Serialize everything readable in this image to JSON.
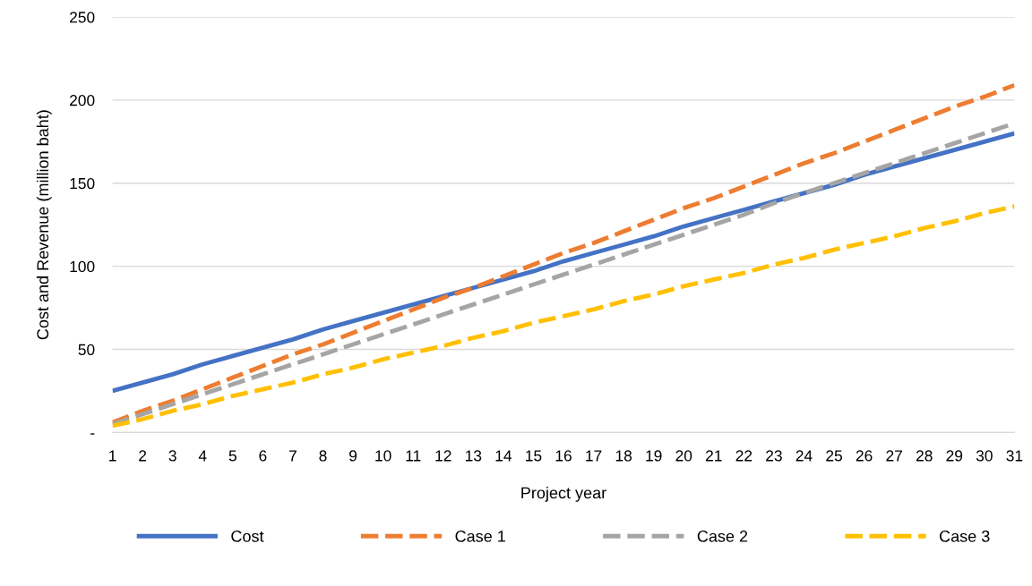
{
  "chart_data": {
    "type": "line",
    "xlabel": "Project year",
    "ylabel": "Cost and Revenue (million baht)",
    "categories": [
      "1",
      "2",
      "3",
      "4",
      "5",
      "6",
      "7",
      "8",
      "9",
      "10",
      "11",
      "12",
      "13",
      "14",
      "15",
      "16",
      "17",
      "18",
      "19",
      "20",
      "21",
      "22",
      "23",
      "24",
      "25",
      "26",
      "27",
      "28",
      "29",
      "30",
      "31"
    ],
    "series": [
      {
        "name": "Cost",
        "color": "#4472c4",
        "line_style": "solid",
        "values": [
          25,
          30,
          35,
          41,
          46,
          51,
          56,
          62,
          67,
          72,
          77,
          82,
          87,
          92,
          97,
          103,
          108,
          113,
          118,
          124,
          129,
          134,
          139,
          144,
          149,
          155,
          160,
          165,
          170,
          175,
          180
        ]
      },
      {
        "name": "Case 1",
        "color": "#ed7d31",
        "line_style": "dashed",
        "values": [
          6,
          13,
          19,
          26,
          33,
          40,
          47,
          53,
          60,
          67,
          74,
          81,
          87,
          94,
          101,
          108,
          114,
          121,
          128,
          135,
          141,
          148,
          155,
          162,
          168,
          175,
          182,
          189,
          196,
          202,
          209
        ]
      },
      {
        "name": "Case 2",
        "color": "#a5a5a5",
        "line_style": "dashed",
        "values": [
          5,
          11,
          17,
          23,
          29,
          35,
          41,
          47,
          53,
          59,
          65,
          71,
          77,
          83,
          89,
          95,
          101,
          107,
          113,
          119,
          125,
          131,
          138,
          144,
          150,
          156,
          162,
          168,
          174,
          180,
          186
        ]
      },
      {
        "name": "Case 3",
        "color": "#ffc000",
        "line_style": "dashed",
        "values": [
          4,
          8,
          13,
          17,
          22,
          26,
          30,
          35,
          39,
          44,
          48,
          52,
          57,
          61,
          66,
          70,
          74,
          79,
          83,
          88,
          92,
          96,
          101,
          105,
          110,
          114,
          118,
          123,
          127,
          132,
          136
        ]
      }
    ],
    "ylim": [
      0,
      250
    ],
    "yticks": [
      {
        "value": 0,
        "label": "-"
      },
      50,
      100,
      150,
      200,
      250
    ],
    "grid": "y",
    "legend": "bottom"
  }
}
